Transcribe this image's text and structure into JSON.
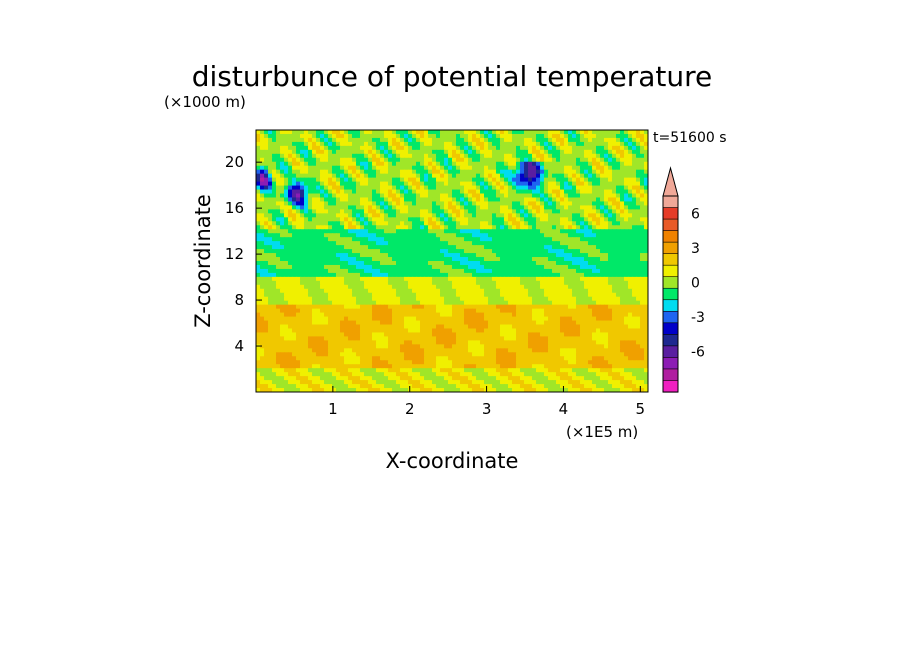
{
  "chart_data": {
    "type": "heatmap",
    "title": "disturbunce of potential temperature",
    "xlabel": "X-coordinate",
    "ylabel": "Z-coordinate",
    "x_unit": "(×1E5 m)",
    "y_unit": "(×1000 m)",
    "time_label": "t=51600 s",
    "xlim": [
      0,
      5.1
    ],
    "ylim": [
      0,
      22.8
    ],
    "x_ticks": [
      1,
      2,
      3,
      4,
      5
    ],
    "y_ticks": [
      4,
      8,
      12,
      16,
      20
    ],
    "colorbar": {
      "tick_labels": [
        "6",
        "3",
        "0",
        "-3",
        "-6"
      ],
      "tick_values": [
        6,
        3,
        0,
        -3,
        -6
      ],
      "levels": [
        {
          "lo": -99,
          "hi": -8,
          "color": "#f020c0"
        },
        {
          "lo": -8,
          "hi": -7,
          "color": "#b01ea0"
        },
        {
          "lo": -7,
          "hi": -6,
          "color": "#8c1cb4"
        },
        {
          "lo": -6,
          "hi": -5,
          "color": "#5a1ea0"
        },
        {
          "lo": -5,
          "hi": -4,
          "color": "#1e2890"
        },
        {
          "lo": -4,
          "hi": -3,
          "color": "#0000c8"
        },
        {
          "lo": -3,
          "hi": -2,
          "color": "#1e64f0"
        },
        {
          "lo": -2,
          "hi": -1,
          "color": "#00dcf0"
        },
        {
          "lo": -1,
          "hi": 0,
          "color": "#00e868"
        },
        {
          "lo": 0,
          "hi": 1,
          "color": "#a0e628"
        },
        {
          "lo": 1,
          "hi": 2,
          "color": "#f0f000"
        },
        {
          "lo": 2,
          "hi": 3,
          "color": "#f0c800"
        },
        {
          "lo": 3,
          "hi": 4,
          "color": "#f0a000"
        },
        {
          "lo": 4,
          "hi": 5,
          "color": "#f08200"
        },
        {
          "lo": 5,
          "hi": 6,
          "color": "#e85a28"
        },
        {
          "lo": 6,
          "hi": 7,
          "color": "#e63c28"
        },
        {
          "lo": 7,
          "hi": 99,
          "color": "#f0a898"
        }
      ]
    },
    "field_description_bands": [
      {
        "z_range": [
          0,
          2
        ],
        "approx_value": 1.5
      },
      {
        "z_range": [
          2,
          7.5
        ],
        "approx_value": 2.6
      },
      {
        "z_range": [
          7.5,
          10
        ],
        "approx_value": 1.2
      },
      {
        "z_range": [
          10,
          14
        ],
        "approx_value": -0.5
      },
      {
        "z_range": [
          14,
          22.8
        ],
        "approx_value": 0.5
      }
    ],
    "grid": false,
    "colorbar_position": "right"
  }
}
